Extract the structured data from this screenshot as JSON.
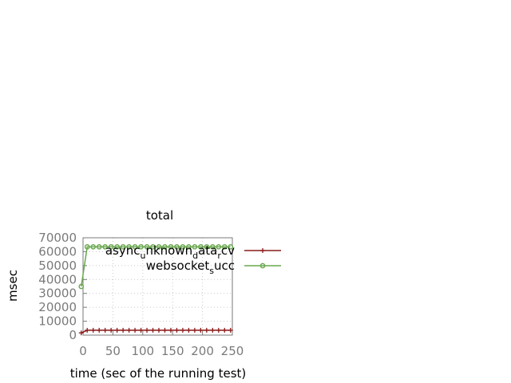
{
  "chart_data": {
    "type": "line",
    "title": "total",
    "xlabel": "time (sec of the running test)",
    "ylabel": "msec",
    "xlim": [
      0,
      250
    ],
    "ylim": [
      0,
      70000
    ],
    "x_ticks": [
      0,
      50,
      100,
      150,
      200,
      250
    ],
    "y_ticks": [
      0,
      10000,
      20000,
      30000,
      40000,
      50000,
      60000,
      70000
    ],
    "grid": true,
    "legend_position": "top-right",
    "x": [
      -3,
      7,
      17,
      27,
      37,
      47,
      57,
      67,
      77,
      87,
      97,
      107,
      117,
      127,
      137,
      147,
      157,
      167,
      177,
      187,
      197,
      207,
      217,
      227,
      237,
      247
    ],
    "series": [
      {
        "name": "async_unknown_data_rcv",
        "legend_label": {
          "parts": [
            "async",
            "u",
            "nknown",
            "d",
            "ata",
            "r",
            "cv"
          ],
          "subscripts": [
            1,
            3,
            5
          ]
        },
        "color": "#8b1a1a",
        "marker": "plus",
        "values": [
          1600,
          3500,
          3500,
          3500,
          3500,
          3500,
          3500,
          3500,
          3500,
          3500,
          3500,
          3500,
          3500,
          3500,
          3500,
          3500,
          3500,
          3500,
          3500,
          3500,
          3500,
          3500,
          3500,
          3500,
          3500,
          3500
        ]
      },
      {
        "name": "websocket_succ",
        "legend_label": {
          "parts": [
            "websocket",
            "s",
            "ucc"
          ],
          "subscripts": [
            1
          ]
        },
        "color": "#6aa84f",
        "marker": "circle",
        "values": [
          35000,
          63500,
          63500,
          63500,
          63500,
          63500,
          63500,
          63500,
          63500,
          63500,
          63500,
          63500,
          63500,
          63500,
          63500,
          63500,
          63500,
          63500,
          63500,
          63500,
          63500,
          63500,
          63500,
          63500,
          63500,
          63500
        ]
      }
    ]
  }
}
